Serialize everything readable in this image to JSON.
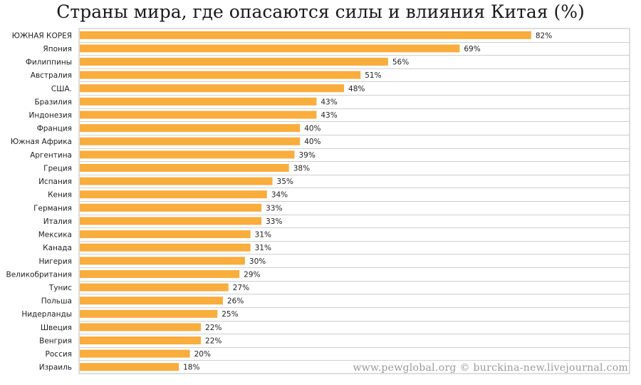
{
  "title": "Страны мира, где опасаются силы и влияния Китая (%)",
  "watermark": "www.pewglobal.org © burckina-new.livejournal.com",
  "colors": {
    "bar": "#f8ad3d",
    "grid": "#cfcfcf",
    "plot_border": "#bdbdbd",
    "plot_bg": "#ffffff"
  },
  "chart_data": {
    "type": "bar",
    "orientation": "horizontal",
    "title": "Страны мира, где опасаются силы и влияния Китая (%)",
    "xlim": [
      0,
      100
    ],
    "value_suffix": "%",
    "grid": true,
    "categories": [
      "ЮЖНАЯ КОРЕЯ",
      "Япония",
      "Филиппины",
      "Австралия",
      "США.",
      "Бразилия",
      "Индонезия",
      "Франция",
      "Южная Африка",
      "Аргентина",
      "Греция",
      "Испания",
      "Кения",
      "Германия",
      "Италия",
      "Мексика",
      "Канада",
      "Нигерия",
      "Великобритания",
      "Тунис",
      "Польша",
      "Нидерланды",
      "Швеция",
      "Венгрия",
      "Россия",
      "Израиль"
    ],
    "values": [
      82,
      69,
      56,
      51,
      48,
      43,
      43,
      40,
      40,
      39,
      38,
      35,
      34,
      33,
      33,
      31,
      31,
      30,
      29,
      27,
      26,
      25,
      22,
      22,
      20,
      18
    ],
    "value_labels": [
      "82%",
      "69%",
      "56%",
      "51%",
      "48%",
      "43%",
      "43%",
      "40%",
      "40%",
      "39%",
      "38%",
      "35%",
      "34%",
      "33%",
      "33%",
      "31%",
      "31%",
      "30%",
      "29%",
      "27%",
      "26%",
      "25%",
      "22%",
      "22%",
      "20%",
      "18%"
    ]
  }
}
